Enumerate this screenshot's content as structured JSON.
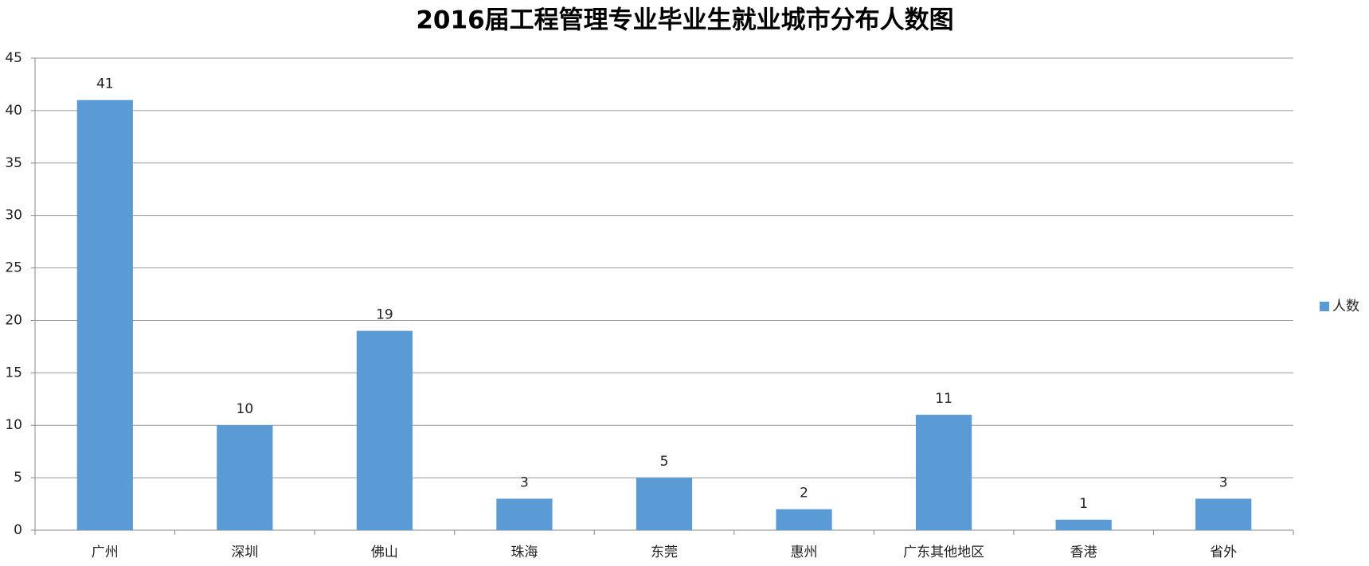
{
  "chart_data": {
    "type": "bar",
    "title": "2016届工程管理专业毕业生就业城市分布人数图",
    "categories": [
      "广州",
      "深圳",
      "佛山",
      "珠海",
      "东莞",
      "惠州",
      "广东其他地区",
      "香港",
      "省外"
    ],
    "series": [
      {
        "name": "人数",
        "color": "#5b9bd5",
        "values": [
          41,
          10,
          19,
          3,
          5,
          2,
          11,
          1,
          3
        ]
      }
    ],
    "ylim": [
      0,
      45
    ],
    "yticks": [
      0,
      5,
      10,
      15,
      20,
      25,
      30,
      35,
      40,
      45
    ],
    "grid": true,
    "legend": "right",
    "data_labels": true
  }
}
